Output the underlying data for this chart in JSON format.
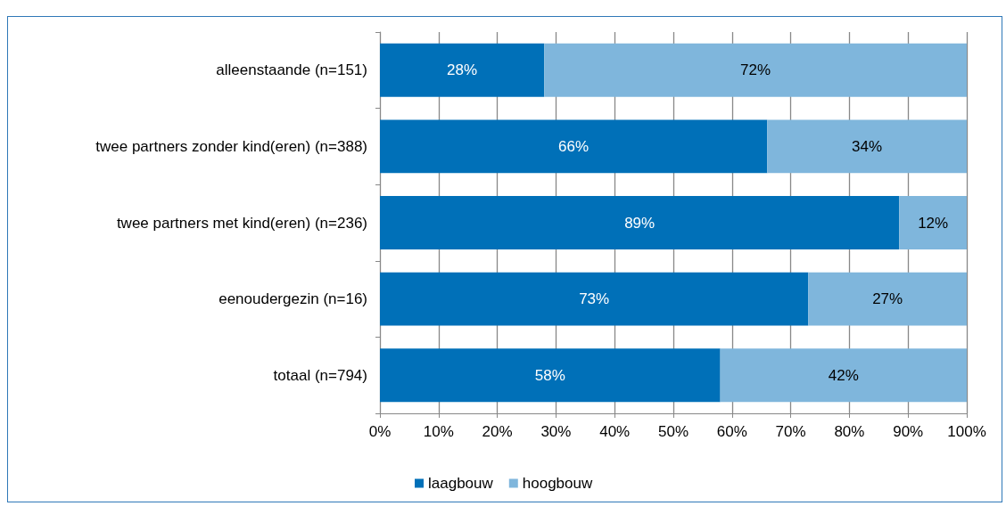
{
  "chart_data": {
    "type": "bar",
    "orientation": "horizontal",
    "stacked": true,
    "categories": [
      "alleenstaande (n=151)",
      "twee partners zonder kind(eren) (n=388)",
      "twee partners met kind(eren) (n=236)",
      "eenoudergezin (n=16)",
      "totaal (n=794)"
    ],
    "series": [
      {
        "name": "laagbouw",
        "color": "#0070b8",
        "values": [
          28,
          66,
          88.5,
          73,
          58
        ],
        "value_labels": [
          "28%",
          "66%",
          "89%",
          "73%",
          "58%"
        ]
      },
      {
        "name": "hoogbouw",
        "color": "#7fb6dc",
        "values": [
          72,
          34,
          11.5,
          27,
          42
        ],
        "value_labels": [
          "72%",
          "34%",
          "12%",
          "27%",
          "42%"
        ]
      }
    ],
    "xlim": [
      0,
      100
    ],
    "xticks": [
      {
        "value": 0,
        "label": "0%"
      },
      {
        "value": 10,
        "label": "10%"
      },
      {
        "value": 20,
        "label": "20%"
      },
      {
        "value": 30,
        "label": "30%"
      },
      {
        "value": 40,
        "label": "40%"
      },
      {
        "value": 50,
        "label": "50%"
      },
      {
        "value": 60,
        "label": "60%"
      },
      {
        "value": 70,
        "label": "70%"
      },
      {
        "value": 80,
        "label": "80%"
      },
      {
        "value": 90,
        "label": "90%"
      },
      {
        "value": 100,
        "label": "100%"
      }
    ],
    "grid": "x",
    "legend": "bottom"
  }
}
